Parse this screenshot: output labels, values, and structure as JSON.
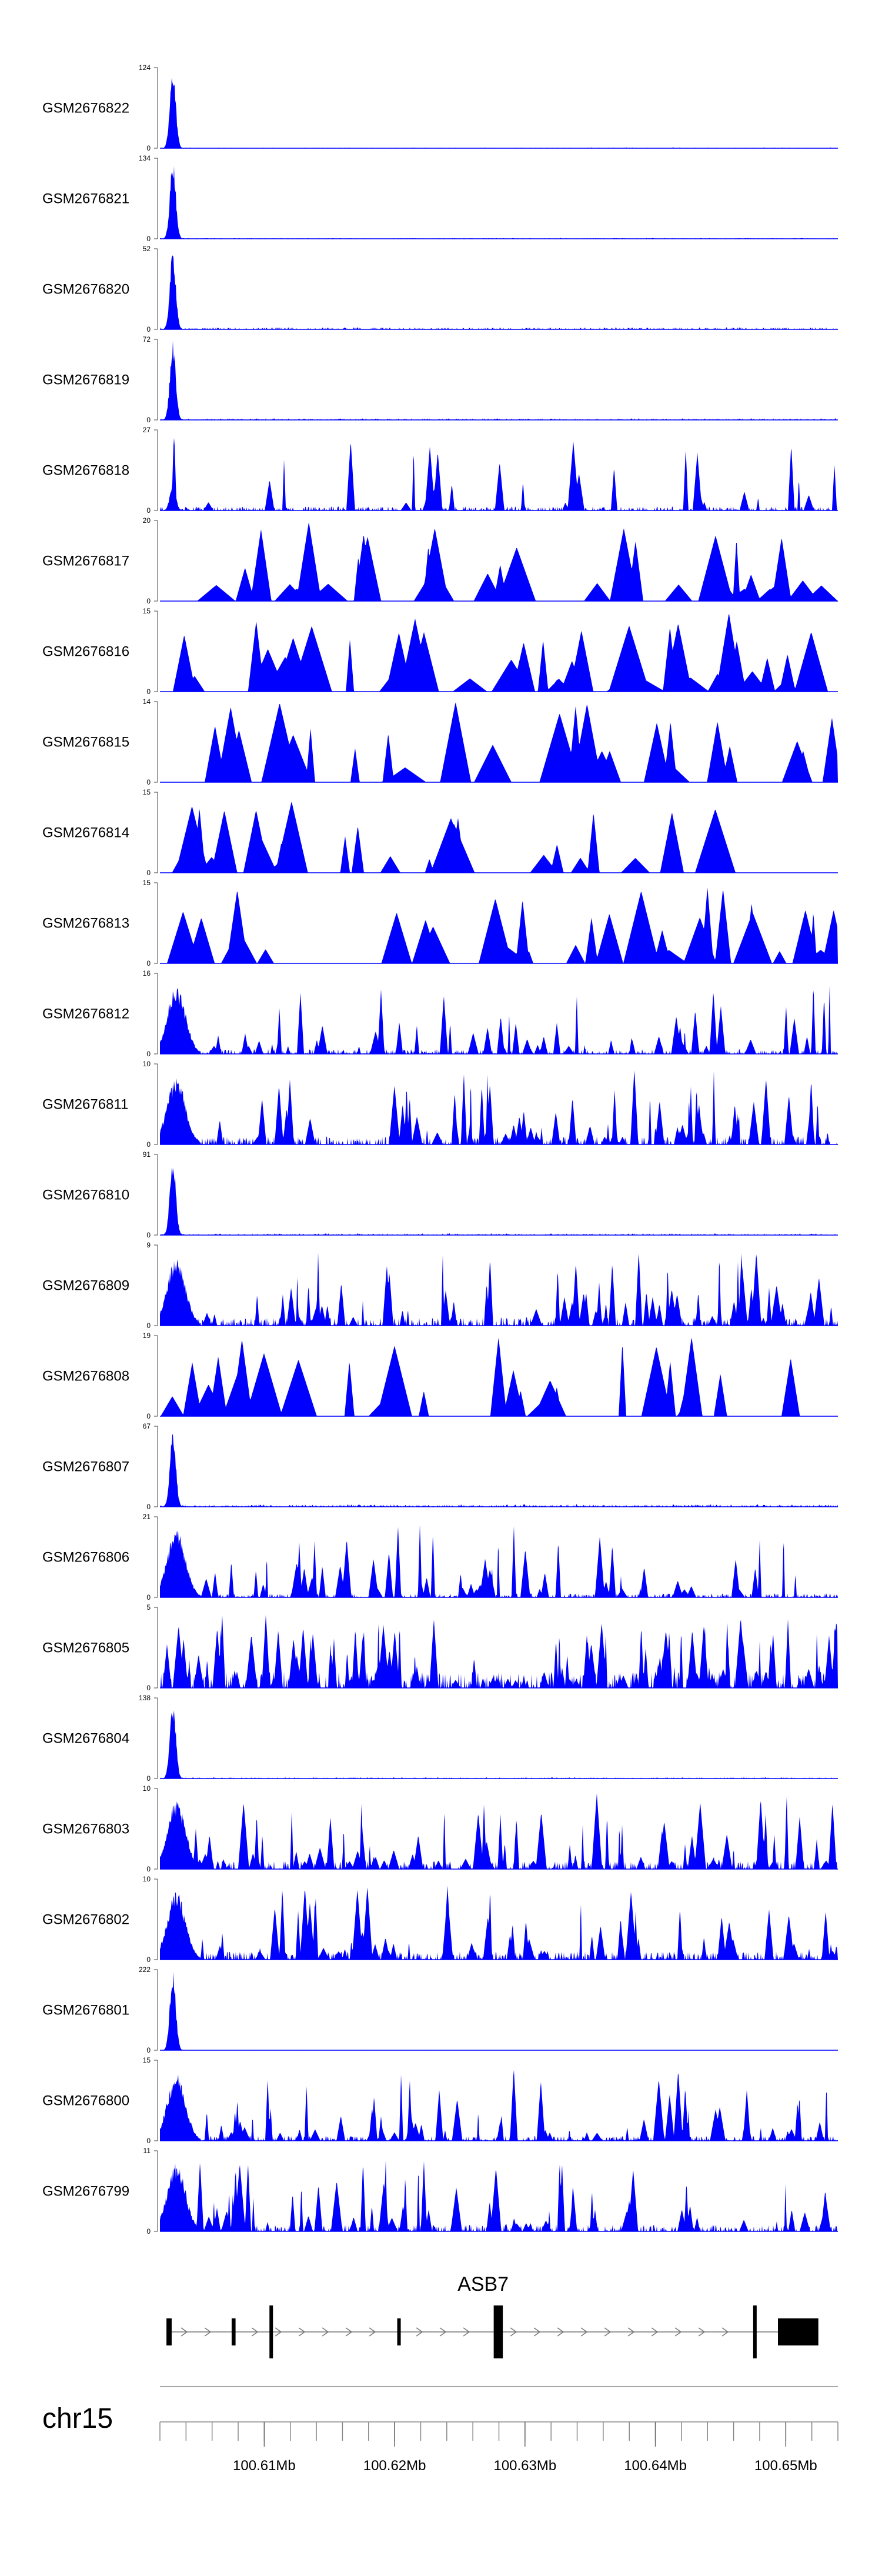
{
  "chart_data": {
    "type": "area",
    "title": "",
    "xlabel": "",
    "ylabel": "",
    "fill_color": "#0000ff",
    "x_range": [
      100602000,
      100654000
    ],
    "tracks": [
      {
        "name": "GSM2676822",
        "ymax": 124,
        "ymin": 0,
        "profile": "promoter",
        "noise": 0.01,
        "bg_peaks": 0,
        "seed": 1
      },
      {
        "name": "GSM2676821",
        "ymax": 134,
        "ymin": 0,
        "profile": "promoter",
        "noise": 0.01,
        "bg_peaks": 0,
        "seed": 2
      },
      {
        "name": "GSM2676820",
        "ymax": 52,
        "ymin": 0,
        "profile": "promoter",
        "noise": 0.025,
        "bg_peaks": 0,
        "seed": 3
      },
      {
        "name": "GSM2676819",
        "ymax": 72,
        "ymin": 0,
        "profile": "promoter",
        "noise": 0.02,
        "bg_peaks": 0,
        "seed": 4
      },
      {
        "name": "GSM2676818",
        "ymax": 27,
        "ymin": 0,
        "profile": "promoter-weak",
        "noise": 0.05,
        "bg_peaks": 28,
        "seed": 5
      },
      {
        "name": "GSM2676817",
        "ymax": 20,
        "ymin": 0,
        "profile": "sparse",
        "noise": 0.0,
        "bg_peaks": 34,
        "seed": 6
      },
      {
        "name": "GSM2676816",
        "ymax": 15,
        "ymin": 0,
        "profile": "sparse",
        "noise": 0.0,
        "bg_peaks": 40,
        "seed": 7
      },
      {
        "name": "GSM2676815",
        "ymax": 14,
        "ymin": 0,
        "profile": "sparse",
        "noise": 0.0,
        "bg_peaks": 26,
        "seed": 8
      },
      {
        "name": "GSM2676814",
        "ymax": 15,
        "ymin": 0,
        "profile": "sparse",
        "noise": 0.0,
        "bg_peaks": 30,
        "seed": 9
      },
      {
        "name": "GSM2676813",
        "ymax": 15,
        "ymin": 0,
        "profile": "sparse",
        "noise": 0.0,
        "bg_peaks": 30,
        "seed": 10
      },
      {
        "name": "GSM2676812",
        "ymax": 16,
        "ymin": 0,
        "profile": "dense-promoter",
        "noise": 0.06,
        "bg_peaks": 60,
        "seed": 11
      },
      {
        "name": "GSM2676811",
        "ymax": 10,
        "ymin": 0,
        "profile": "dense-promoter",
        "noise": 0.1,
        "bg_peaks": 80,
        "seed": 12
      },
      {
        "name": "GSM2676810",
        "ymax": 91,
        "ymin": 0,
        "profile": "promoter",
        "noise": 0.02,
        "bg_peaks": 0,
        "seed": 13
      },
      {
        "name": "GSM2676809",
        "ymax": 9,
        "ymin": 0,
        "profile": "dense-promoter",
        "noise": 0.1,
        "bg_peaks": 80,
        "seed": 14
      },
      {
        "name": "GSM2676808",
        "ymax": 19,
        "ymin": 0,
        "profile": "sparse",
        "noise": 0.0,
        "bg_peaks": 32,
        "seed": 15
      },
      {
        "name": "GSM2676807",
        "ymax": 67,
        "ymin": 0,
        "profile": "promoter",
        "noise": 0.03,
        "bg_peaks": 0,
        "seed": 16
      },
      {
        "name": "GSM2676806",
        "ymax": 21,
        "ymin": 0,
        "profile": "dense-promoter",
        "noise": 0.05,
        "bg_peaks": 55,
        "seed": 17
      },
      {
        "name": "GSM2676805",
        "ymax": 5,
        "ymin": 0,
        "profile": "dense",
        "noise": 0.2,
        "bg_peaks": 140,
        "seed": 18
      },
      {
        "name": "GSM2676804",
        "ymax": 138,
        "ymin": 0,
        "profile": "promoter",
        "noise": 0.015,
        "bg_peaks": 0,
        "seed": 19
      },
      {
        "name": "GSM2676803",
        "ymax": 10,
        "ymin": 0,
        "profile": "dense-promoter",
        "noise": 0.1,
        "bg_peaks": 80,
        "seed": 20
      },
      {
        "name": "GSM2676802",
        "ymax": 10,
        "ymin": 0,
        "profile": "dense-promoter",
        "noise": 0.1,
        "bg_peaks": 75,
        "seed": 21
      },
      {
        "name": "GSM2676801",
        "ymax": 222,
        "ymin": 0,
        "profile": "promoter",
        "noise": 0.005,
        "bg_peaks": 0,
        "seed": 22
      },
      {
        "name": "GSM2676800",
        "ymax": 15,
        "ymin": 0,
        "profile": "dense-promoter",
        "noise": 0.06,
        "bg_peaks": 65,
        "seed": 23
      },
      {
        "name": "GSM2676799",
        "ymax": 11,
        "ymin": 0,
        "profile": "dense-promoter",
        "noise": 0.08,
        "bg_peaks": 75,
        "seed": 24
      }
    ],
    "gene": {
      "name": "ASB7",
      "strand": "+",
      "start": 100602500,
      "end": 100652500,
      "exons": [
        [
          100602500,
          100602900
        ],
        [
          100607500,
          100607800
        ],
        [
          100610400,
          100610600
        ],
        [
          100620200,
          100620300
        ],
        [
          100627600,
          100628300
        ],
        [
          100647500,
          100647700
        ],
        [
          100649400,
          100652500
        ]
      ]
    },
    "chromosome": "chr15",
    "major_ticks": [
      {
        "pos": 100610000,
        "label": "100.61Mb"
      },
      {
        "pos": 100620000,
        "label": "100.62Mb"
      },
      {
        "pos": 100630000,
        "label": "100.63Mb"
      },
      {
        "pos": 100640000,
        "label": "100.64Mb"
      },
      {
        "pos": 100650000,
        "label": "100.65Mb"
      }
    ],
    "minor_tick_step": 2000
  }
}
